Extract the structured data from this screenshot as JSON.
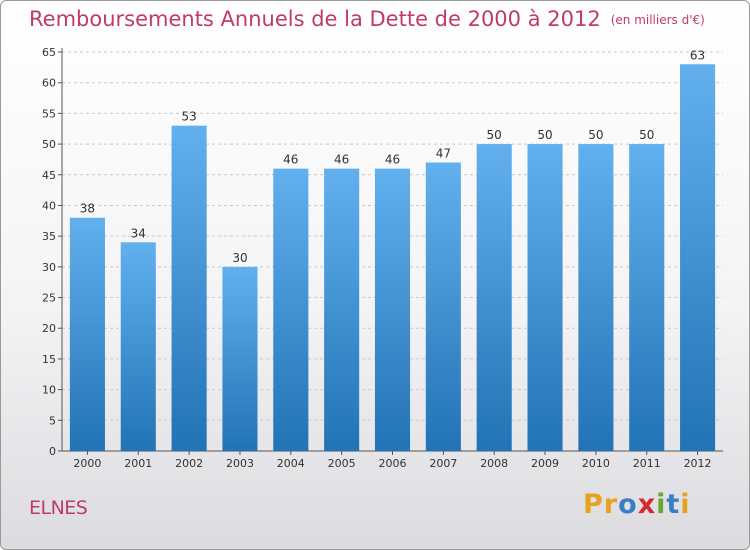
{
  "title": "Remboursements Annuels de la Dette de 2000 à 2012",
  "subtitle": "(en milliers d'€)",
  "commune": "ELNES",
  "logo": {
    "text": "Proxiti",
    "colors": [
      "#e8a020",
      "#e8a020",
      "#3a7fc4",
      "#d4292e",
      "#6aa832",
      "#3a7fc4",
      "#e8a020"
    ]
  },
  "colors": {
    "title": "#c03a6b",
    "bar_top": "#62b0ee",
    "bar_bottom": "#2273b5",
    "grid": "#c9c9c9"
  },
  "chart_data": {
    "type": "bar",
    "categories": [
      "2000",
      "2001",
      "2002",
      "2003",
      "2004",
      "2005",
      "2006",
      "2007",
      "2008",
      "2009",
      "2010",
      "2011",
      "2012"
    ],
    "values": [
      38,
      34,
      53,
      30,
      46,
      46,
      46,
      47,
      50,
      50,
      50,
      50,
      63
    ],
    "title": "Remboursements Annuels de la Dette de 2000 à 2012",
    "xlabel": "",
    "ylabel": "",
    "ylim": [
      0,
      65
    ],
    "yticks": [
      0,
      5,
      10,
      15,
      20,
      25,
      30,
      35,
      40,
      45,
      50,
      55,
      60,
      65
    ],
    "grid": "horizontal dashed",
    "legend": "none"
  }
}
